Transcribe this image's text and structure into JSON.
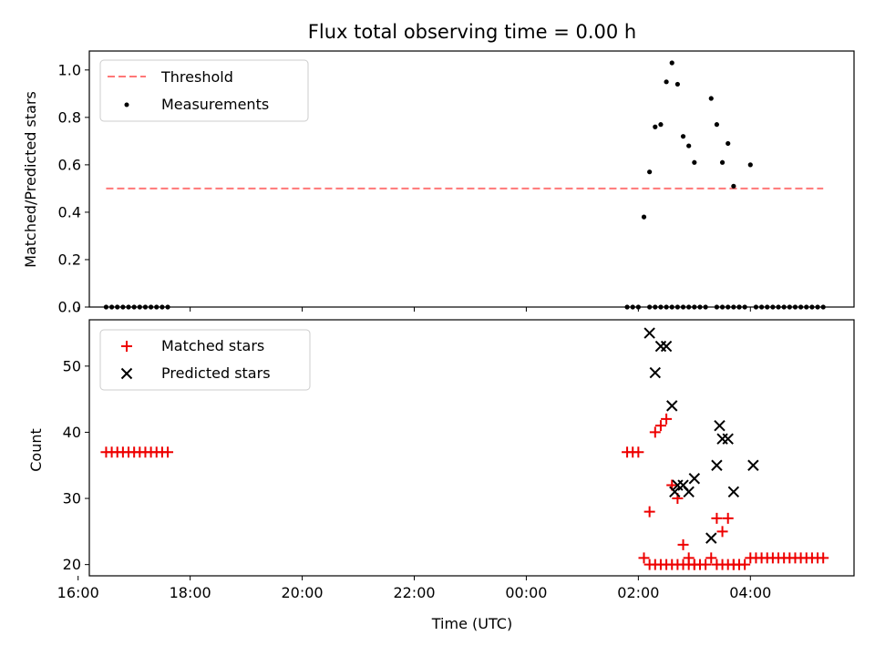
{
  "chart_data": [
    {
      "type": "scatter",
      "title": "Flux total observing time = 0.00 h",
      "xlabel": "",
      "ylabel": "Matched/Predicted stars",
      "xlim": [
        16.2,
        29.85
      ],
      "ylim": [
        0,
        1.08
      ],
      "yticks": [
        0.0,
        0.2,
        0.4,
        0.6,
        0.8,
        1.0
      ],
      "ytick_labels": [
        "0.0",
        "0.2",
        "0.4",
        "0.6",
        "0.8",
        "1.0"
      ],
      "legend": {
        "placement": "upper-left",
        "entries": [
          "Threshold",
          "Measurements"
        ]
      },
      "threshold": {
        "name": "Threshold",
        "value": 0.5,
        "x_start": 16.5,
        "x_end": 29.3,
        "color": "#ff7777"
      },
      "series": [
        {
          "name": "Measurements",
          "color": "#000000",
          "x": [
            16.5,
            16.6,
            16.7,
            16.8,
            16.9,
            17.0,
            17.1,
            17.2,
            17.3,
            17.4,
            17.5,
            17.6,
            25.8,
            25.9,
            26.0,
            26.1,
            26.2,
            26.3,
            26.4,
            26.5,
            26.6,
            26.7,
            26.8,
            26.9,
            27.0,
            27.1,
            27.2,
            27.3,
            27.4,
            27.5,
            27.6,
            27.7,
            27.8,
            27.9,
            28.0,
            26.2,
            26.3,
            26.4,
            26.5,
            26.6,
            26.7,
            26.8,
            26.9,
            27.0,
            27.4,
            27.5,
            27.6,
            27.7,
            27.8,
            28.1,
            28.2,
            28.3,
            28.4,
            28.5,
            28.6,
            28.7,
            28.8,
            28.9,
            29.0,
            29.1,
            29.2,
            29.3
          ],
          "y": [
            0,
            0,
            0,
            0,
            0,
            0,
            0,
            0,
            0,
            0,
            0,
            0,
            0,
            0,
            0,
            0.38,
            0.57,
            0.76,
            0.77,
            0.95,
            1.03,
            0.94,
            0.72,
            0.68,
            0.61,
            0,
            0,
            0.88,
            0.77,
            0.61,
            0.69,
            0.51,
            0,
            0,
            0.6,
            0,
            0,
            0,
            0,
            0,
            0,
            0,
            0,
            0,
            0,
            0,
            0,
            0,
            0,
            0,
            0,
            0,
            0,
            0,
            0,
            0,
            0,
            0,
            0,
            0,
            0,
            0
          ]
        }
      ]
    },
    {
      "type": "scatter",
      "title": "",
      "xlabel": "Time (UTC)",
      "ylabel": "Count",
      "xlim": [
        16.2,
        29.85
      ],
      "ylim": [
        18.3,
        57.0
      ],
      "yticks": [
        20,
        30,
        40,
        50
      ],
      "ytick_labels": [
        "20",
        "30",
        "40",
        "50"
      ],
      "xticks": [
        16,
        18,
        20,
        22,
        24,
        26,
        28
      ],
      "xtick_labels": [
        "16:00",
        "18:00",
        "20:00",
        "22:00",
        "00:00",
        "02:00",
        "04:00"
      ],
      "legend": {
        "placement": "upper-left",
        "entries": [
          "Matched stars",
          "Predicted stars"
        ]
      },
      "series": [
        {
          "name": "Matched stars",
          "marker": "plus",
          "color": "#ee0000",
          "x": [
            16.5,
            16.6,
            16.7,
            16.8,
            16.9,
            17.0,
            17.1,
            17.2,
            17.3,
            17.4,
            17.5,
            17.6,
            25.8,
            25.9,
            26.0,
            26.1,
            26.2,
            26.3,
            26.4,
            26.5,
            26.6,
            26.7,
            26.8,
            26.9,
            27.0,
            27.1,
            27.2,
            27.3,
            27.4,
            27.5,
            27.6,
            27.7,
            27.8,
            27.9,
            28.0,
            26.2,
            26.3,
            26.4,
            26.5,
            26.6,
            26.7,
            26.8,
            26.9,
            27.0,
            27.4,
            27.5,
            27.6,
            27.7,
            27.8,
            28.1,
            28.2,
            28.3,
            28.4,
            28.5,
            28.6,
            28.7,
            28.8,
            28.9,
            29.0,
            29.1,
            29.2,
            29.3
          ],
          "y": [
            37,
            37,
            37,
            37,
            37,
            37,
            37,
            37,
            37,
            37,
            37,
            37,
            37,
            37,
            37,
            21,
            28,
            40,
            41,
            42,
            32,
            30,
            23,
            21,
            20,
            20,
            20,
            21,
            27,
            25,
            27,
            20,
            20,
            20,
            21,
            20,
            20,
            20,
            20,
            20,
            20,
            20,
            20,
            20,
            20,
            20,
            20,
            20,
            20,
            21,
            21,
            21,
            21,
            21,
            21,
            21,
            21,
            21,
            21,
            21,
            21,
            21
          ]
        },
        {
          "name": "Predicted stars",
          "marker": "x",
          "color": "#000000",
          "x": [
            26.2,
            26.3,
            26.4,
            26.5,
            26.6,
            26.65,
            26.7,
            26.8,
            26.9,
            27.0,
            27.3,
            27.4,
            27.45,
            27.5,
            27.6,
            27.7,
            28.05
          ],
          "y": [
            55,
            49,
            53,
            53,
            44,
            31,
            32,
            32,
            31,
            33,
            24,
            35,
            41,
            39,
            39,
            31,
            35
          ]
        }
      ]
    }
  ]
}
